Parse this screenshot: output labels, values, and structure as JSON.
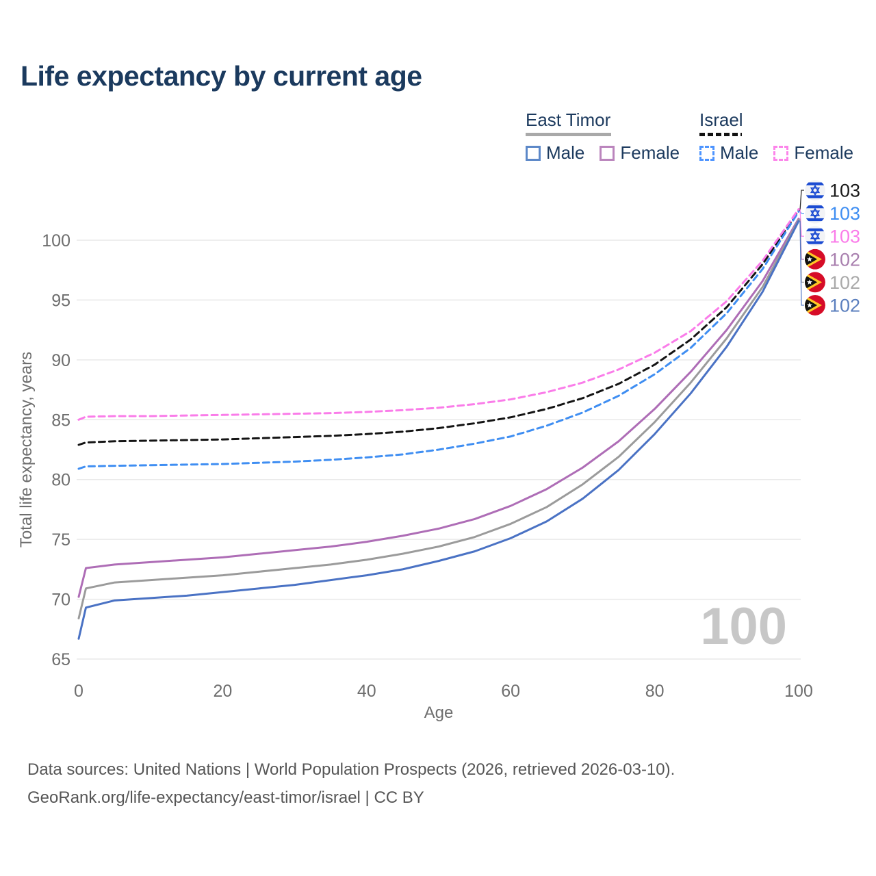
{
  "title": "Life expectancy by current age",
  "legend": {
    "groups": [
      {
        "country": "East Timor",
        "underline_style": "solid",
        "underline_color": "#a9a9a9",
        "underline_width": 125,
        "items": [
          {
            "label": "Male",
            "color": "#5c88c8",
            "dashed": false
          },
          {
            "label": "Female",
            "color": "#bb85bd",
            "dashed": false
          }
        ]
      },
      {
        "country": "Israel",
        "underline_style": "dashed",
        "underline_color": "#111111",
        "underline_width": 62,
        "items": [
          {
            "label": "Male",
            "color": "#4d94ff",
            "dashed": true
          },
          {
            "label": "Female",
            "color": "#fc84ea",
            "dashed": true
          }
        ]
      }
    ]
  },
  "chart_data": {
    "type": "line",
    "title": "Life expectancy by current age",
    "xlabel": "Age",
    "ylabel": "Total life expectancy, years",
    "xlim": [
      0,
      100
    ],
    "ylim": [
      65,
      103.5
    ],
    "x_ticks": [
      0,
      20,
      40,
      60,
      80,
      100
    ],
    "y_ticks": [
      65,
      70,
      75,
      80,
      85,
      90,
      95,
      100
    ],
    "grid": "horizontal",
    "watermark": "100",
    "x": [
      0,
      1,
      5,
      10,
      15,
      20,
      25,
      30,
      35,
      40,
      45,
      50,
      55,
      60,
      65,
      70,
      75,
      80,
      85,
      90,
      95,
      100
    ],
    "series": [
      {
        "name": "Israel (both sexes)",
        "country": "Israel",
        "sex": "both",
        "color": "#141414",
        "dashed": true,
        "flag": "israel",
        "label_value": "103",
        "label_color": "#1a1a1a",
        "values": [
          82.9,
          83.1,
          83.2,
          83.25,
          83.3,
          83.35,
          83.45,
          83.55,
          83.65,
          83.8,
          84.0,
          84.3,
          84.7,
          85.2,
          85.9,
          86.8,
          88.0,
          89.6,
          91.7,
          94.4,
          98.0,
          102.5
        ]
      },
      {
        "name": "Israel Male",
        "country": "Israel",
        "sex": "male",
        "color": "#3f8ef2",
        "dashed": true,
        "flag": "israel",
        "label_value": "103",
        "label_color": "#3f8ef2",
        "values": [
          80.9,
          81.1,
          81.15,
          81.2,
          81.25,
          81.3,
          81.4,
          81.5,
          81.65,
          81.85,
          82.1,
          82.5,
          83.0,
          83.6,
          84.5,
          85.6,
          87.0,
          88.8,
          91.0,
          93.9,
          97.6,
          102.4
        ]
      },
      {
        "name": "Israel Female",
        "country": "Israel",
        "sex": "female",
        "color": "#fa7ce9",
        "dashed": true,
        "flag": "israel",
        "label_value": "103",
        "label_color": "#fa7ce9",
        "values": [
          85.0,
          85.25,
          85.3,
          85.3,
          85.35,
          85.4,
          85.45,
          85.5,
          85.55,
          85.65,
          85.8,
          86.0,
          86.3,
          86.7,
          87.3,
          88.1,
          89.2,
          90.6,
          92.4,
          94.9,
          98.3,
          102.6
        ]
      },
      {
        "name": "East Timor Female",
        "country": "East Timor",
        "sex": "female",
        "color": "#ae6db6",
        "dashed": false,
        "flag": "east-timor",
        "label_value": "102",
        "label_color": "#a87fae",
        "values": [
          70.2,
          72.6,
          72.9,
          73.1,
          73.3,
          73.5,
          73.8,
          74.1,
          74.4,
          74.8,
          75.3,
          75.9,
          76.7,
          77.8,
          79.2,
          81.0,
          83.2,
          85.9,
          89.0,
          92.5,
          96.6,
          101.8
        ]
      },
      {
        "name": "East Timor (both sexes)",
        "country": "East Timor",
        "sex": "both",
        "color": "#9b9b9b",
        "dashed": false,
        "flag": "east-timor",
        "label_value": "102",
        "label_color": "#aaaaaa",
        "values": [
          68.4,
          70.9,
          71.4,
          71.6,
          71.8,
          72.0,
          72.3,
          72.6,
          72.9,
          73.3,
          73.8,
          74.4,
          75.2,
          76.3,
          77.7,
          79.6,
          81.9,
          84.8,
          88.1,
          91.8,
          96.1,
          101.7
        ]
      },
      {
        "name": "East Timor Male",
        "country": "East Timor",
        "sex": "male",
        "color": "#4a72c4",
        "dashed": false,
        "flag": "east-timor",
        "label_value": "102",
        "label_color": "#5b7fbe",
        "values": [
          66.7,
          69.3,
          69.9,
          70.1,
          70.3,
          70.6,
          70.9,
          71.2,
          71.6,
          72.0,
          72.5,
          73.2,
          74.0,
          75.1,
          76.5,
          78.4,
          80.8,
          83.8,
          87.2,
          91.1,
          95.7,
          101.6
        ]
      }
    ]
  },
  "footer": {
    "line1": "Data sources: United Nations | World Population Prospects (2026, retrieved 2026-03-10).",
    "line2": "GeoRank.org/life-expectancy/east-timor/israel | CC BY"
  }
}
